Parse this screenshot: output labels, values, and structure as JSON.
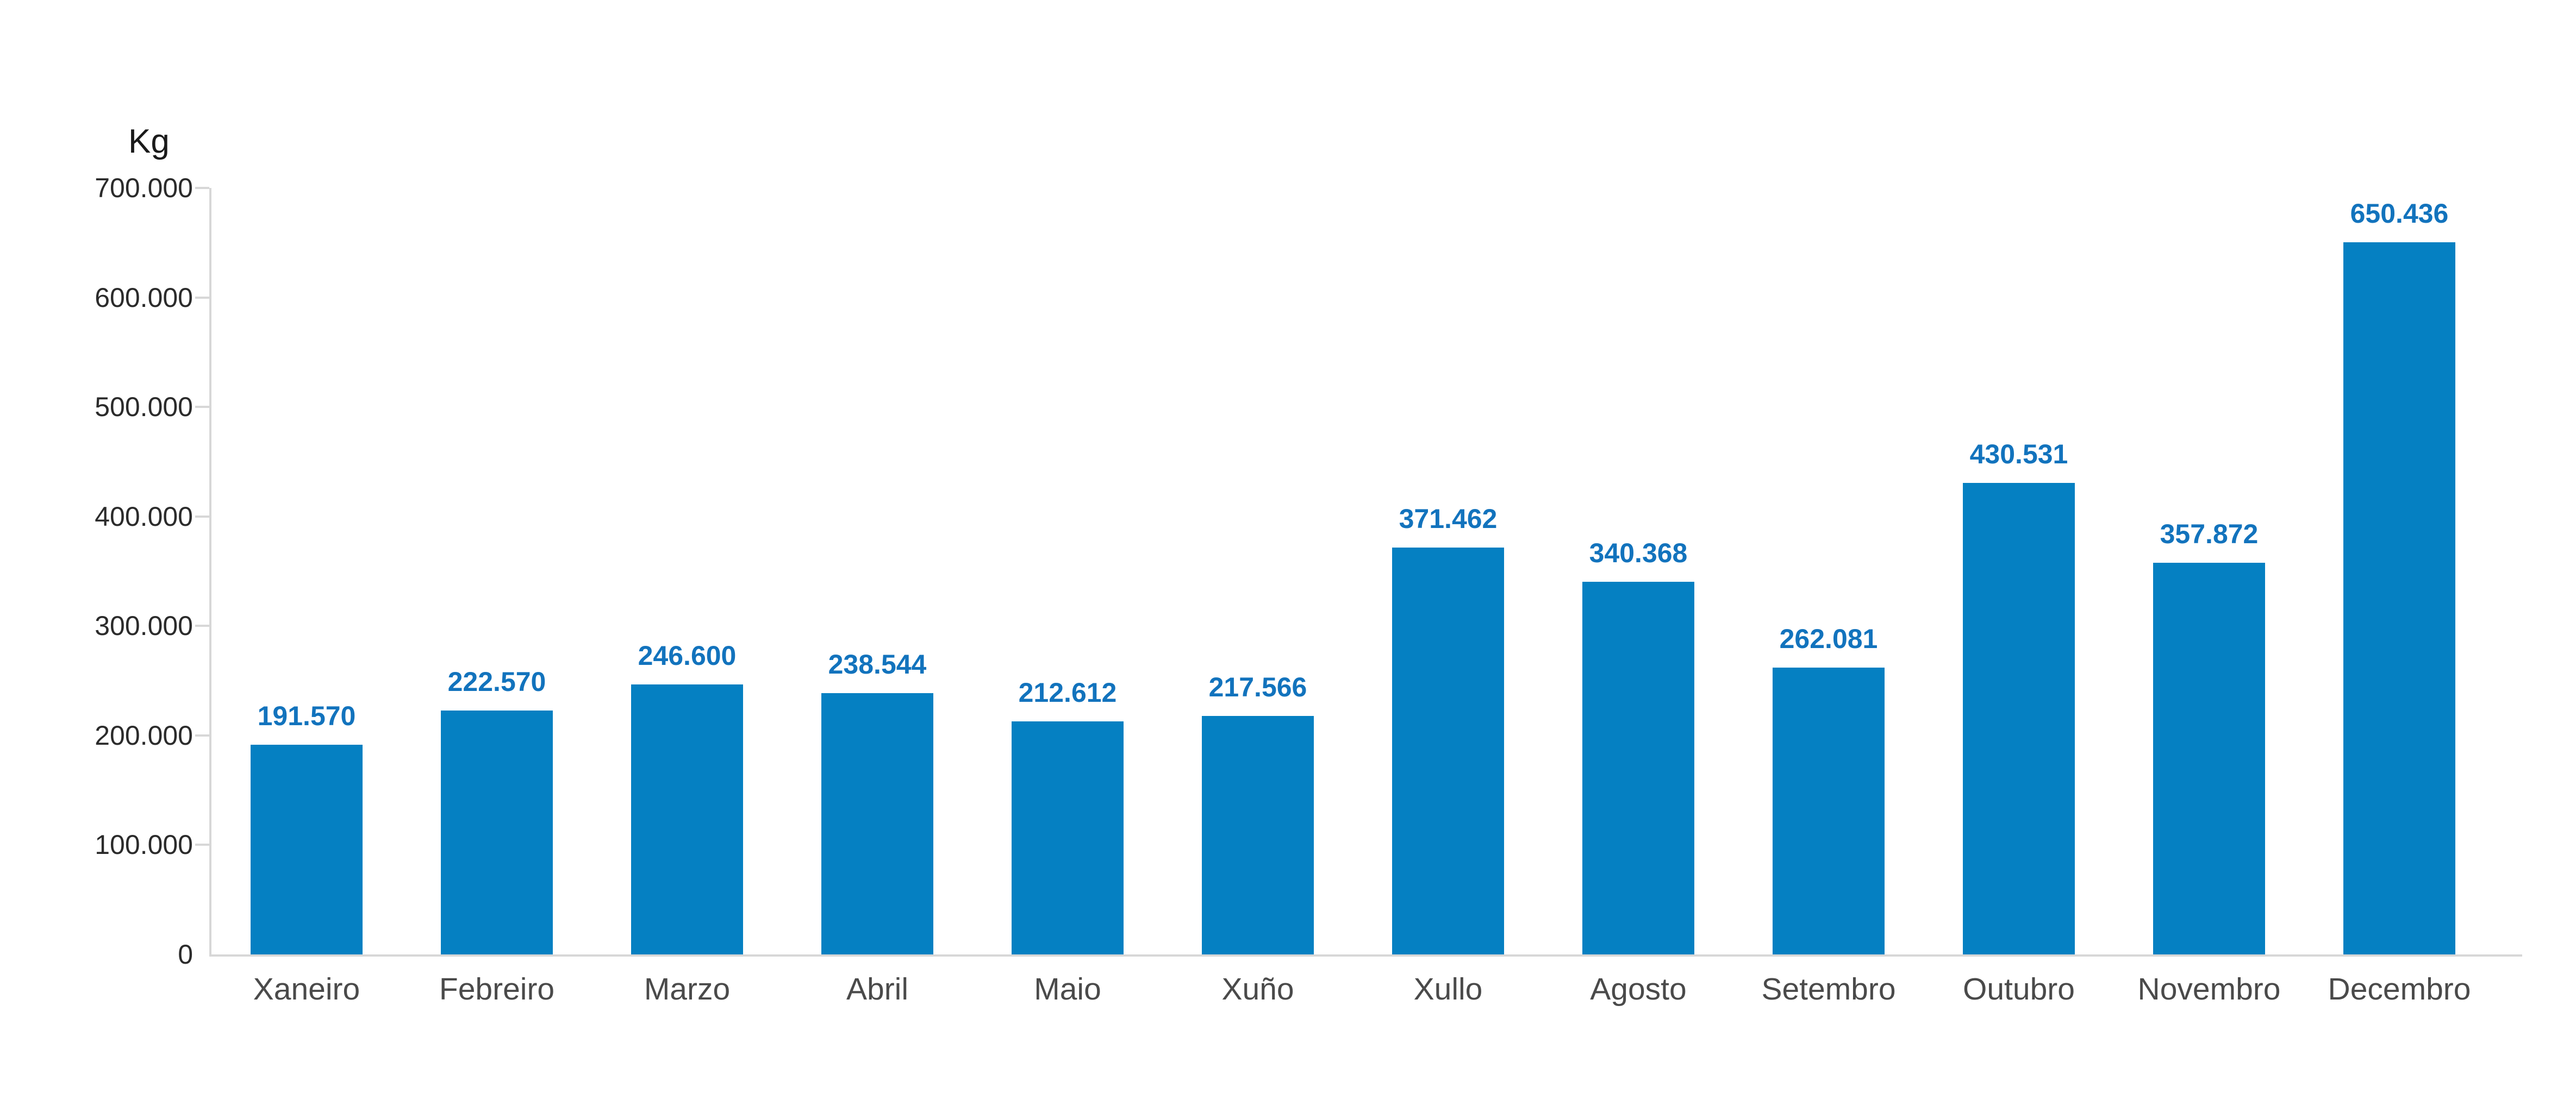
{
  "chart_data": {
    "type": "bar",
    "title": "",
    "unit_label": "Kg",
    "categories": [
      "Xaneiro",
      "Febreiro",
      "Marzo",
      "Abril",
      "Maio",
      "Xuño",
      "Xullo",
      "Agosto",
      "Setembro",
      "Outubro",
      "Novembro",
      "Decembro"
    ],
    "values": [
      191570,
      222570,
      246600,
      238544,
      212612,
      217566,
      371462,
      340368,
      262081,
      430531,
      357872,
      650436
    ],
    "value_labels": [
      "191.570",
      "222.570",
      "246.600",
      "238.544",
      "212.612",
      "217.566",
      "371.462",
      "340.368",
      "262.081",
      "430.531",
      "357.872",
      "650.436"
    ],
    "xlabel": "",
    "ylabel": "Kg",
    "ylim": [
      0,
      700000
    ],
    "ytick_interval": 100000,
    "ytick_labels": [
      "0",
      "100.000",
      "200.000",
      "300.000",
      "400.000",
      "500.000",
      "600.000",
      "700.000"
    ],
    "grid": false,
    "legend": false,
    "colors": {
      "bar": "#0580c2",
      "value_label": "#1273bd",
      "axis_line": "#d7d7d7",
      "ytick_label": "#2b2b2b",
      "xtick_label": "#4a4a4a"
    }
  }
}
